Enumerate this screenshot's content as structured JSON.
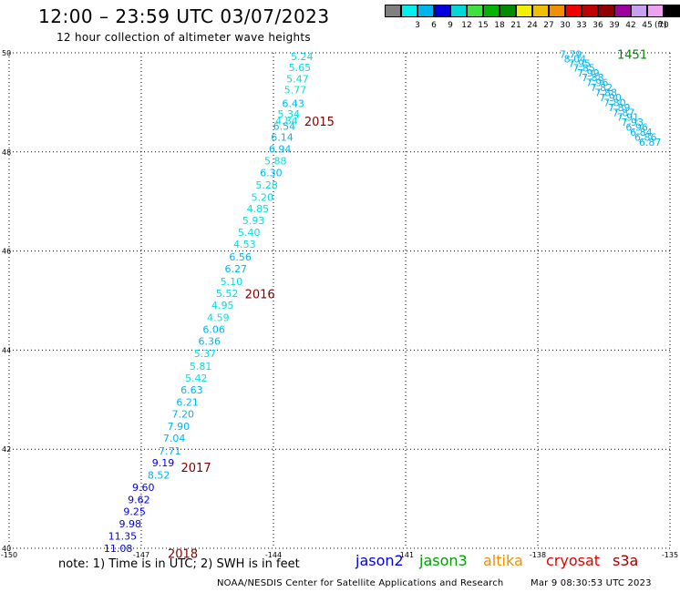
{
  "header": {
    "title": "12:00 – 23:59 UTC 03/07/2023",
    "subtitle": "12 hour collection of altimeter wave heights"
  },
  "legend": {
    "swatches": [
      {
        "color": "#808080",
        "label": ""
      },
      {
        "color": "#00f0f0",
        "label": "3"
      },
      {
        "color": "#00b4f0",
        "label": "6"
      },
      {
        "color": "#0000e0",
        "label": "9"
      },
      {
        "color": "#00d8d8",
        "label": "12"
      },
      {
        "color": "#40e040",
        "label": "15"
      },
      {
        "color": "#00b400",
        "label": "18"
      },
      {
        "color": "#008c00",
        "label": "21"
      },
      {
        "color": "#f0f000",
        "label": "24"
      },
      {
        "color": "#f0c000",
        "label": "27"
      },
      {
        "color": "#f09000",
        "label": "30"
      },
      {
        "color": "#f00000",
        "label": "33"
      },
      {
        "color": "#c00000",
        "label": "36"
      },
      {
        "color": "#900000",
        "label": "39"
      },
      {
        "color": "#a000a0",
        "label": "42"
      },
      {
        "color": "#c8a0f0",
        "label": "45"
      },
      {
        "color": "#f0a0f0",
        "label": "70"
      },
      {
        "color": "#000000",
        "label": ""
      }
    ],
    "unit": "(ft)"
  },
  "map": {
    "lon_ticks": [
      "-150",
      "-147",
      "-144",
      "-141",
      "-138",
      "-135"
    ],
    "lat_ticks": [
      "50",
      "48",
      "46",
      "44",
      "42",
      "40"
    ],
    "lon_range": [
      -150,
      -135
    ],
    "lat_range": [
      40,
      50
    ]
  },
  "tracks": [
    {
      "id": "2015",
      "label": "2015",
      "label_lon": -143.3,
      "label_lat": 48.62,
      "label_color": "#800000",
      "points": [
        {
          "lon": -143.1,
          "lat": 49.93,
          "v": "5.24",
          "c": "#00e0e0"
        },
        {
          "lon": -143.15,
          "lat": 49.71,
          "v": "5.65",
          "c": "#00e0e0"
        },
        {
          "lon": -143.2,
          "lat": 49.48,
          "v": "5.47",
          "c": "#00e0e0"
        },
        {
          "lon": -143.25,
          "lat": 49.26,
          "v": "5.77",
          "c": "#00e0e0"
        },
        {
          "lon": -143.3,
          "lat": 48.98,
          "v": "6.43",
          "c": "#00b4f0"
        },
        {
          "lon": -143.4,
          "lat": 48.77,
          "v": "5.34",
          "c": "#00e0e0"
        },
        {
          "lon": -143.45,
          "lat": 48.63,
          "v": "4.84",
          "c": "#00e0e0"
        },
        {
          "lon": -143.5,
          "lat": 48.52,
          "v": "6.54",
          "c": "#00b4f0"
        },
        {
          "lon": -143.55,
          "lat": 48.3,
          "v": "6.14",
          "c": "#00b4f0"
        },
        {
          "lon": -143.6,
          "lat": 48.06,
          "v": "6.94",
          "c": "#00b4f0"
        },
        {
          "lon": -143.7,
          "lat": 47.82,
          "v": "5.88",
          "c": "#00e0e0"
        },
        {
          "lon": -143.8,
          "lat": 47.58,
          "v": "6.30",
          "c": "#00b4f0"
        },
        {
          "lon": -143.9,
          "lat": 47.33,
          "v": "5.28",
          "c": "#00e0e0"
        },
        {
          "lon": -144.0,
          "lat": 47.09,
          "v": "5.20",
          "c": "#00e0e0"
        },
        {
          "lon": -144.1,
          "lat": 46.86,
          "v": "4.85",
          "c": "#00e0e0"
        },
        {
          "lon": -144.2,
          "lat": 46.62,
          "v": "5.93",
          "c": "#00e0e0"
        },
        {
          "lon": -144.3,
          "lat": 46.38,
          "v": "5.40",
          "c": "#00e0e0"
        },
        {
          "lon": -144.4,
          "lat": 46.14,
          "v": "4.53",
          "c": "#00e0e0"
        },
        {
          "lon": -144.5,
          "lat": 45.88,
          "v": "6.56",
          "c": "#00b4f0"
        },
        {
          "lon": -144.6,
          "lat": 45.64,
          "v": "6.27",
          "c": "#00b4f0"
        }
      ]
    },
    {
      "id": "2016",
      "label": "2016",
      "label_lon": -144.65,
      "label_lat": 45.14,
      "label_color": "#800000",
      "points": [
        {
          "lon": -144.7,
          "lat": 45.39,
          "v": "5.10",
          "c": "#00e0e0"
        },
        {
          "lon": -144.8,
          "lat": 45.15,
          "v": "5.52",
          "c": "#00e0e0"
        },
        {
          "lon": -144.9,
          "lat": 44.91,
          "v": "4.95",
          "c": "#00e0e0"
        },
        {
          "lon": -145.0,
          "lat": 44.66,
          "v": "4.59",
          "c": "#00e0e0"
        },
        {
          "lon": -145.1,
          "lat": 44.42,
          "v": "6.06",
          "c": "#00b4f0"
        },
        {
          "lon": -145.2,
          "lat": 44.18,
          "v": "6.36",
          "c": "#00b4f0"
        },
        {
          "lon": -145.3,
          "lat": 43.93,
          "v": "5.37",
          "c": "#00e0e0"
        },
        {
          "lon": -145.4,
          "lat": 43.68,
          "v": "5.81",
          "c": "#00e0e0"
        },
        {
          "lon": -145.5,
          "lat": 43.44,
          "v": "5.42",
          "c": "#00e0e0"
        },
        {
          "lon": -145.6,
          "lat": 43.2,
          "v": "6.63",
          "c": "#00b4f0"
        },
        {
          "lon": -145.7,
          "lat": 42.95,
          "v": "6.21",
          "c": "#00b4f0"
        },
        {
          "lon": -145.8,
          "lat": 42.71,
          "v": "7.20",
          "c": "#00b4f0"
        },
        {
          "lon": -145.9,
          "lat": 42.46,
          "v": "7.90",
          "c": "#00b4f0"
        },
        {
          "lon": -146.0,
          "lat": 42.22,
          "v": "7.04",
          "c": "#00b4f0"
        },
        {
          "lon": -146.1,
          "lat": 41.97,
          "v": "7.71",
          "c": "#00b4f0"
        }
      ]
    },
    {
      "id": "2017",
      "label": "2017",
      "label_lon": -146.1,
      "label_lat": 41.64,
      "label_color": "#800000",
      "points": [
        {
          "lon": -146.25,
          "lat": 41.73,
          "v": "9.19",
          "c": "#0000e0"
        },
        {
          "lon": -146.35,
          "lat": 41.48,
          "v": "8.52",
          "c": "#00b4f0"
        },
        {
          "lon": -146.7,
          "lat": 41.23,
          "v": "9.60",
          "c": "#0000e0"
        },
        {
          "lon": -146.8,
          "lat": 40.98,
          "v": "9.62",
          "c": "#0000e0"
        },
        {
          "lon": -146.9,
          "lat": 40.74,
          "v": "9.25",
          "c": "#0000e0"
        },
        {
          "lon": -147.0,
          "lat": 40.5,
          "v": "9.98",
          "c": "#0000e0"
        },
        {
          "lon": -147.1,
          "lat": 40.25,
          "v": "11.35",
          "c": "#0000e0"
        },
        {
          "lon": -147.2,
          "lat": 40.0,
          "v": "11.08",
          "c": "#0000e0"
        }
      ]
    },
    {
      "id": "2018",
      "label": "2018",
      "label_lon": -146.4,
      "label_lat": 39.9,
      "label_color": "#800000",
      "points": []
    },
    {
      "id": "1451",
      "label": "1451",
      "label_lon": -136.2,
      "label_lat": 49.97,
      "label_color": "#008c00",
      "points": [
        {
          "lon": -137.0,
          "lat": 49.97,
          "v": "7.79",
          "c": "#00b4f0"
        },
        {
          "lon": -136.9,
          "lat": 49.88,
          "v": "8.04",
          "c": "#00b4f0"
        },
        {
          "lon": -136.8,
          "lat": 49.79,
          "v": "7.95",
          "c": "#00b4f0"
        },
        {
          "lon": -136.7,
          "lat": 49.7,
          "v": "7.85",
          "c": "#00b4f0"
        },
        {
          "lon": -136.6,
          "lat": 49.6,
          "v": "7.99",
          "c": "#00b4f0"
        },
        {
          "lon": -136.5,
          "lat": 49.5,
          "v": "7.88",
          "c": "#00b4f0"
        },
        {
          "lon": -136.4,
          "lat": 49.4,
          "v": "7.96",
          "c": "#00b4f0"
        },
        {
          "lon": -136.3,
          "lat": 49.3,
          "v": "7.82",
          "c": "#00b4f0"
        },
        {
          "lon": -136.2,
          "lat": 49.2,
          "v": "7.88",
          "c": "#00b4f0"
        },
        {
          "lon": -136.1,
          "lat": 49.1,
          "v": "7.90",
          "c": "#00b4f0"
        },
        {
          "lon": -136.0,
          "lat": 49.0,
          "v": "7.80",
          "c": "#00b4f0"
        },
        {
          "lon": -135.9,
          "lat": 48.9,
          "v": "7.89",
          "c": "#00b4f0"
        },
        {
          "lon": -135.8,
          "lat": 48.8,
          "v": "7.87",
          "c": "#00b4f0"
        },
        {
          "lon": -135.7,
          "lat": 48.7,
          "v": "7.91",
          "c": "#00b4f0"
        },
        {
          "lon": -135.6,
          "lat": 48.6,
          "v": "7.93",
          "c": "#00b4f0"
        },
        {
          "lon": -135.5,
          "lat": 48.5,
          "v": "6.96",
          "c": "#00b4f0"
        },
        {
          "lon": -135.4,
          "lat": 48.4,
          "v": "6.84",
          "c": "#00b4f0"
        },
        {
          "lon": -135.3,
          "lat": 48.3,
          "v": "6.86",
          "c": "#00b4f0"
        },
        {
          "lon": -135.2,
          "lat": 48.2,
          "v": "6.87",
          "c": "#00b4f0"
        }
      ]
    }
  ],
  "footer": {
    "note": "note: 1) Time is in UTC; 2) SWH is in feet",
    "satellites": [
      {
        "name": "jason2",
        "color": "#0000e0"
      },
      {
        "name": "jason3",
        "color": "#00a000"
      },
      {
        "name": "altika",
        "color": "#f09000"
      },
      {
        "name": "cryosat",
        "color": "#e00000"
      },
      {
        "name": "s3a",
        "color": "#a00000"
      }
    ],
    "credit": "NOAA/NESDIS Center for Satellite Applications and Research",
    "timestamp": "Mar  9 08:30:53 UTC 2023"
  }
}
